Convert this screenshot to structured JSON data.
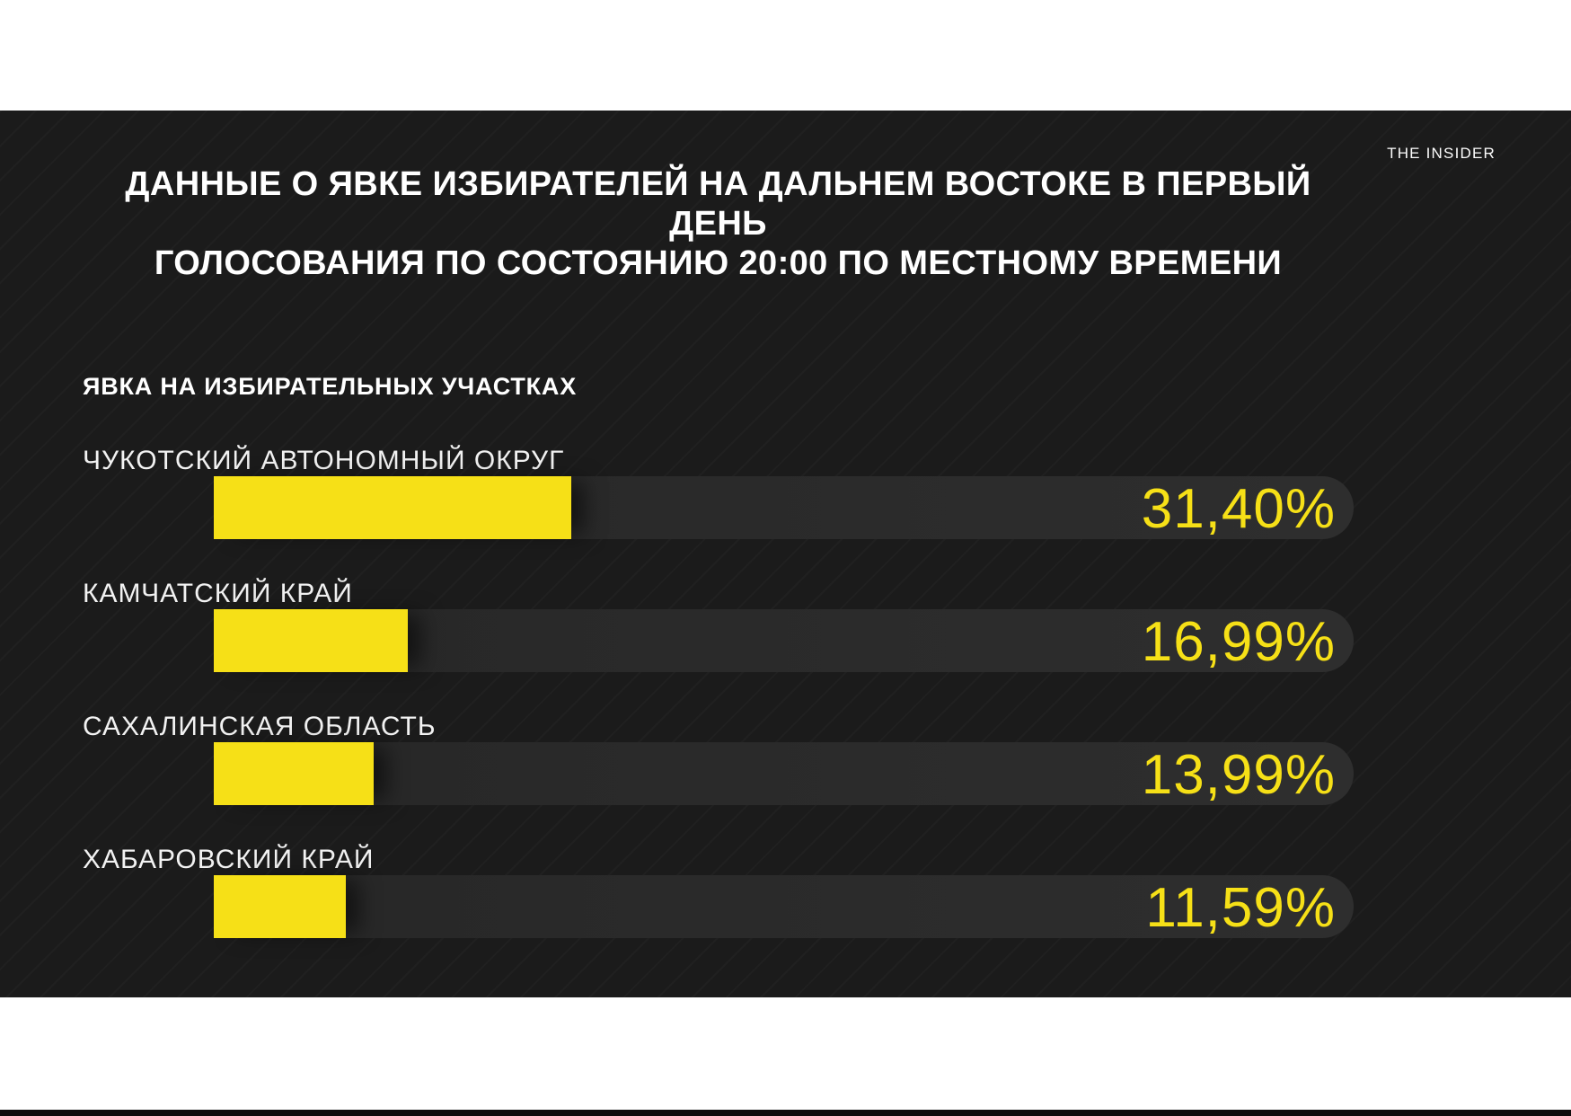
{
  "brand": {
    "logo_text": "THE INSIDER"
  },
  "header": {
    "title_line1": "ДАННЫЕ О ЯВКЕ ИЗБИРАТЕЛЕЙ НА ДАЛЬНЕМ ВОСТОКЕ В ПЕРВЫЙ ДЕНЬ",
    "title_line2": "ГОЛОСОВАНИЯ ПО СОСТОЯНИЮ 20:00 ПО МЕСТНОМУ ВРЕМЕНИ",
    "subtitle": "ЯВКА НА ИЗБИРАТЕЛЬНЫХ УЧАСТКАХ"
  },
  "colors": {
    "accent_yellow": "#F6E017",
    "panel_background": "#1B1B1B",
    "track_gray": "#2B2B2B",
    "text_white": "#FFFFFF",
    "bottom_strip_black": "#0D0D0D"
  },
  "chart_data": {
    "type": "bar",
    "orientation": "horizontal",
    "title": "ДАННЫЕ О ЯВКЕ ИЗБИРАТЕЛЕЙ НА ДАЛЬНЕМ ВОСТОКЕ В ПЕРВЫЙ ДЕНЬ ГОЛОСОВАНИЯ ПО СОСТОЯНИЮ 20:00 ПО МЕСТНОМУ ВРЕМЕНИ",
    "subtitle": "ЯВКА НА ИЗБИРАТЕЛЬНЫХ УЧАСТКАХ",
    "categories": [
      "ЧУКОТСКИЙ АВТОНОМНЫЙ ОКРУГ",
      "КАМЧАТСКИЙ КРАЙ",
      "САХАЛИНСКАЯ ОБЛАСТЬ",
      "ХАБАРОВСКИЙ КРАЙ"
    ],
    "values": [
      31.4,
      16.99,
      13.99,
      11.59
    ],
    "value_labels": [
      "31,40%",
      "16,99%",
      "13,99%",
      "11,59%"
    ],
    "unit": "%",
    "xlim": [
      0,
      100
    ],
    "grid": false,
    "legend": false,
    "bar_color": "#F6E017",
    "track_color": "#2B2B2B"
  }
}
